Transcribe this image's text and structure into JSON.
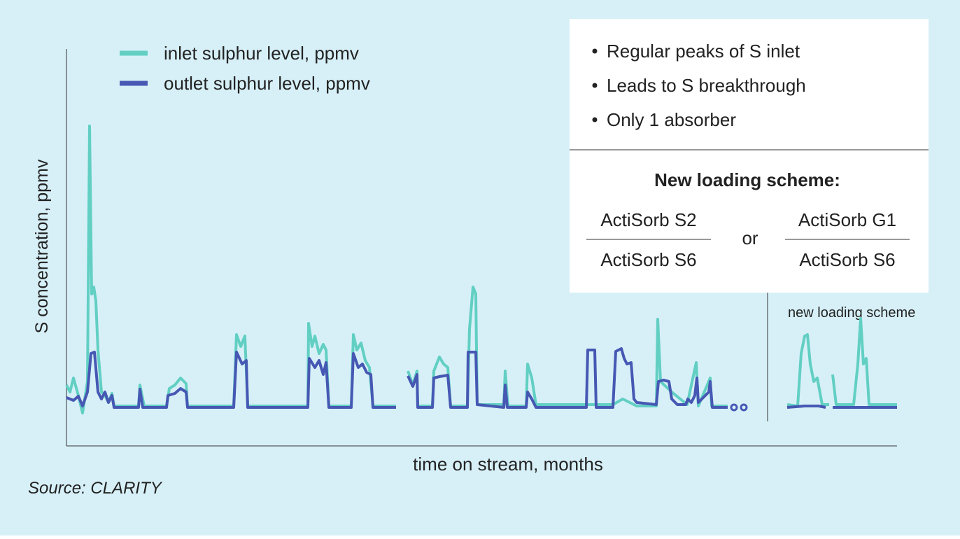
{
  "chart_data": {
    "type": "line",
    "ylabel": "S concentration, ppmv",
    "xlabel": "time on stream, months",
    "annotation": "new loading scheme",
    "source": "Source: CLARITY",
    "xlim": [
      0,
      1187
    ],
    "ylim": [
      0,
      567
    ],
    "legend": "top-left",
    "series": [
      {
        "name": "inlet sulphur level, ppmv",
        "color": "#62cfc3",
        "x": [
          0,
          5,
          10,
          17,
          23,
          30,
          33,
          36,
          39,
          42,
          45,
          50,
          55,
          60,
          65,
          68,
          103,
          105,
          111,
          143,
          147,
          155,
          163,
          171,
          173,
          239,
          243,
          249,
          255,
          259,
          345,
          346,
          351,
          355,
          361,
          367,
          371,
          375,
          407,
          410,
          415,
          421,
          427,
          433,
          438,
          471,
          480,
          488,
          495,
          501,
          502,
          523,
          525,
          533,
          539,
          545,
          549,
          573,
          576,
          581,
          585,
          587,
          625,
          627,
          631,
          657,
          659,
          665,
          671,
          781,
          795,
          815,
          843,
          845,
          849,
          865,
          887,
          900,
          903,
          920,
          922,
          945,
          990,
          1030,
          1045,
          1050,
          1055,
          1059,
          1063,
          1068,
          1073,
          1080,
          1090,
          1092,
          1095,
          1100,
          1125,
          1131,
          1135,
          1139,
          1143,
          1147,
          1187
        ],
        "values": [
          87,
          77,
          97,
          72,
          47,
          92,
          457,
          217,
          227,
          207,
          137,
          77,
          72,
          62,
          75,
          57,
          57,
          87,
          57,
          57,
          82,
          87,
          97,
          89,
          57,
          57,
          159,
          142,
          157,
          57,
          57,
          175,
          142,
          157,
          132,
          145,
          137,
          57,
          57,
          159,
          137,
          147,
          122,
          112,
          57,
          57,
          null,
          107,
          87,
          107,
          57,
          57,
          107,
          127,
          117,
          112,
          57,
          57,
          167,
          227,
          217,
          59,
          59,
          107,
          57,
          57,
          117,
          97,
          59,
          59,
          67,
          57,
          57,
          181,
          92,
          77,
          59,
          119,
          57,
          97,
          57,
          57,
          null,
          59,
          57,
          132,
          157,
          159,
          117,
          92,
          97,
          59,
          59,
          null,
          102,
          59,
          59,
          117,
          182,
          117,
          125,
          59,
          59
        ]
      },
      {
        "name": "outlet sulphur level, ppmv",
        "color": "#4658b3",
        "x": [
          0,
          10,
          17,
          23,
          30,
          35,
          40,
          45,
          50,
          55,
          60,
          65,
          68,
          103,
          105,
          109,
          143,
          145,
          155,
          163,
          171,
          173,
          239,
          243,
          251,
          257,
          259,
          345,
          347,
          355,
          361,
          367,
          371,
          375,
          407,
          410,
          417,
          423,
          429,
          435,
          438,
          471,
          480,
          488,
          495,
          501,
          502,
          523,
          525,
          533,
          545,
          549,
          573,
          574,
          585,
          587,
          625,
          627,
          630,
          657,
          659,
          665,
          671,
          743,
          745,
          755,
          757,
          781,
          785,
          793,
          797,
          801,
          807,
          811,
          815,
          843,
          846,
          853,
          861,
          865,
          873,
          885,
          888,
          893,
          898,
          901,
          903,
          918,
          920,
          923,
          945,
          990,
          1030,
          1055,
          1075,
          1085,
          1090,
          1095,
          1187
        ],
        "values": [
          69,
          65,
          71,
          57,
          77,
          132,
          134,
          77,
          67,
          77,
          62,
          72,
          55,
          55,
          81,
          55,
          55,
          72,
          75,
          82,
          77,
          55,
          55,
          134,
          117,
          122,
          55,
          55,
          125,
          112,
          122,
          102,
          119,
          55,
          55,
          132,
          112,
          117,
          105,
          102,
          55,
          55,
          null,
          100,
          85,
          102,
          55,
          55,
          97,
          99,
          101,
          55,
          55,
          134,
          134,
          59,
          55,
          87,
          55,
          55,
          77,
          67,
          55,
          55,
          137,
          137,
          55,
          55,
          135,
          139,
          125,
          117,
          119,
          67,
          62,
          59,
          92,
          94,
          92,
          67,
          59,
          59,
          67,
          62,
          72,
          97,
          62,
          77,
          92,
          55,
          55,
          null,
          55,
          57,
          57,
          55,
          null,
          55,
          55
        ]
      }
    ]
  },
  "info_box": {
    "bullets": [
      "Regular peaks of S inlet",
      "Leads to S breakthrough",
      "Only 1 absorber"
    ],
    "heading": "New loading scheme:",
    "options": [
      {
        "top": "ActiSorb S2",
        "bottom": "ActiSorb S6"
      },
      {
        "top": "ActiSorb G1",
        "bottom": "ActiSorb S6"
      }
    ],
    "separator": "or"
  }
}
